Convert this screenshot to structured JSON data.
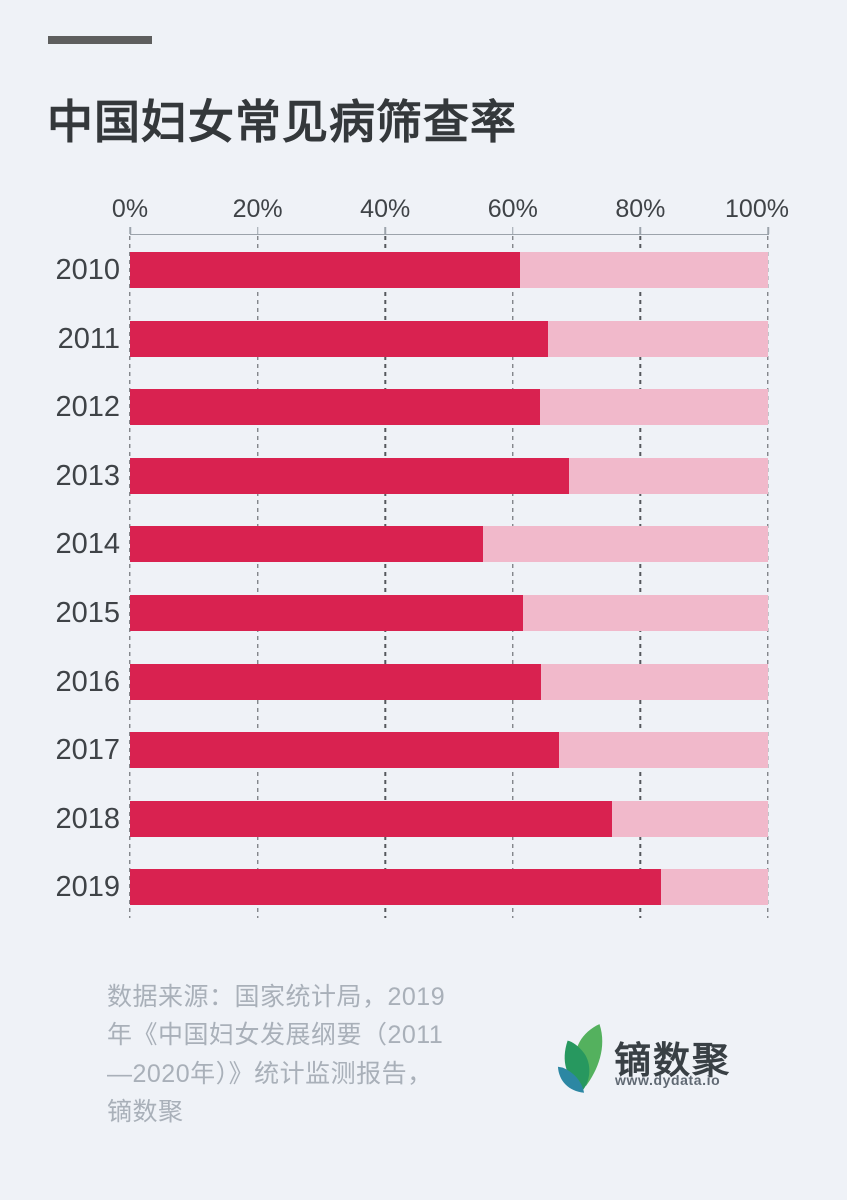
{
  "page": {
    "background": "#EFF2F7"
  },
  "header": {
    "dash_color": "#5E5E5E",
    "title": "中国妇女常见病筛查率",
    "title_color": "#34383B"
  },
  "chart_data": {
    "type": "bar",
    "orientation": "horizontal",
    "title": "中国妇女常见病筛查率",
    "categories": [
      "2010",
      "2011",
      "2012",
      "2013",
      "2014",
      "2015",
      "2016",
      "2017",
      "2018",
      "2019"
    ],
    "values": [
      61.2,
      65.5,
      64.3,
      68.8,
      55.3,
      61.6,
      64.4,
      67.2,
      75.6,
      83.2
    ],
    "unit": "%",
    "xlim": [
      0,
      100
    ],
    "x_tick_labels": [
      "0%",
      "20%",
      "40%",
      "60%",
      "80%",
      "100%"
    ],
    "grid": "vertical-dashed",
    "legend": "none",
    "bar_color": "#D92250",
    "track_color": "#F1B9CB",
    "label_color": "#3F4347",
    "axis_color": "#9CA3AB",
    "grid_color": "#55585D"
  },
  "footer": {
    "source_lines": [
      "数据来源：国家统计局，2019",
      "年《中国妇女发展纲要（2011",
      "—2020年）》统计监测报告，",
      "镝数聚"
    ],
    "source_color": "#A9B0B9",
    "logo": {
      "name": "镝数聚",
      "url": "www.dydata.io",
      "name_color": "#394045",
      "url_color": "#606973",
      "leaf_color_light": "#54B15E",
      "leaf_color_dark": "#27985F",
      "leaf_color_teal": "#2C87A3"
    }
  }
}
